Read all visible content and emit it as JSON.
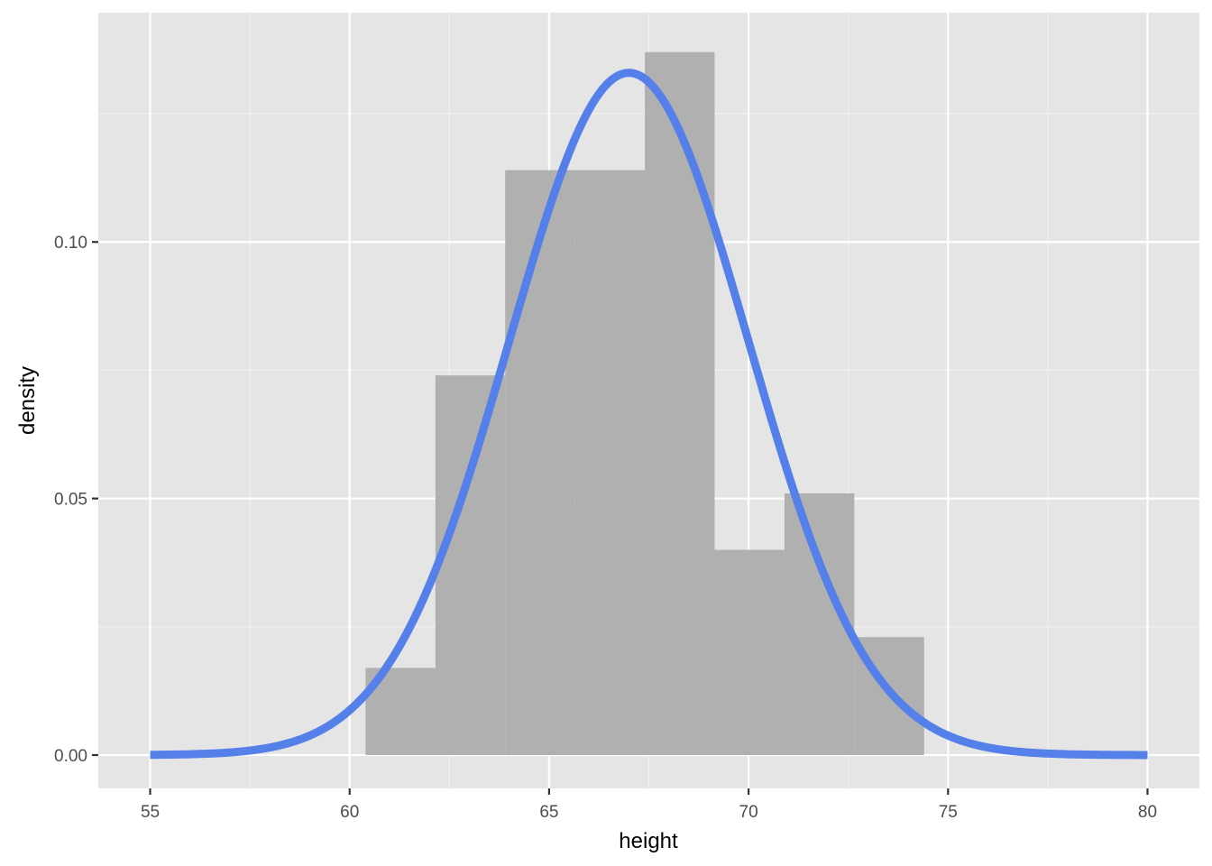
{
  "chart_data": {
    "type": "bar",
    "title": "",
    "xlabel": "height",
    "ylabel": "density",
    "xlim": [
      53.7,
      81.3
    ],
    "ylim": [
      -0.0065,
      0.1447
    ],
    "x_ticks": [
      {
        "value": 55,
        "label": "55"
      },
      {
        "value": 60,
        "label": "60"
      },
      {
        "value": 65,
        "label": "65"
      },
      {
        "value": 70,
        "label": "70"
      },
      {
        "value": 75,
        "label": "75"
      },
      {
        "value": 80,
        "label": "80"
      }
    ],
    "y_ticks": [
      {
        "value": 0.0,
        "label": "0.00"
      },
      {
        "value": 0.05,
        "label": "0.05"
      },
      {
        "value": 0.1,
        "label": "0.10"
      }
    ],
    "grid": true,
    "series": [
      {
        "type": "histogram",
        "bins": [
          {
            "x0": 60.4,
            "x1": 62.15,
            "density": 0.017
          },
          {
            "x0": 62.15,
            "x1": 63.9,
            "density": 0.074
          },
          {
            "x0": 63.9,
            "x1": 65.65,
            "density": 0.114
          },
          {
            "x0": 65.65,
            "x1": 67.4,
            "density": 0.114
          },
          {
            "x0": 67.4,
            "x1": 69.15,
            "density": 0.137
          },
          {
            "x0": 69.15,
            "x1": 70.9,
            "density": 0.04
          },
          {
            "x0": 70.9,
            "x1": 72.65,
            "density": 0.051
          },
          {
            "x0": 72.65,
            "x1": 74.4,
            "density": 0.023
          }
        ]
      },
      {
        "type": "line",
        "curve": "normal-density",
        "mean": 67.0,
        "sd": 3.0,
        "x_range": [
          55,
          80
        ]
      }
    ],
    "colors": {
      "panel_background": "#e5e5e5",
      "grid_major": "#ffffff",
      "grid_minor": "#f2f2f2",
      "bar_fill": "#b0b0b0",
      "curve": "#5680e9",
      "tick_mark": "#333333"
    }
  }
}
